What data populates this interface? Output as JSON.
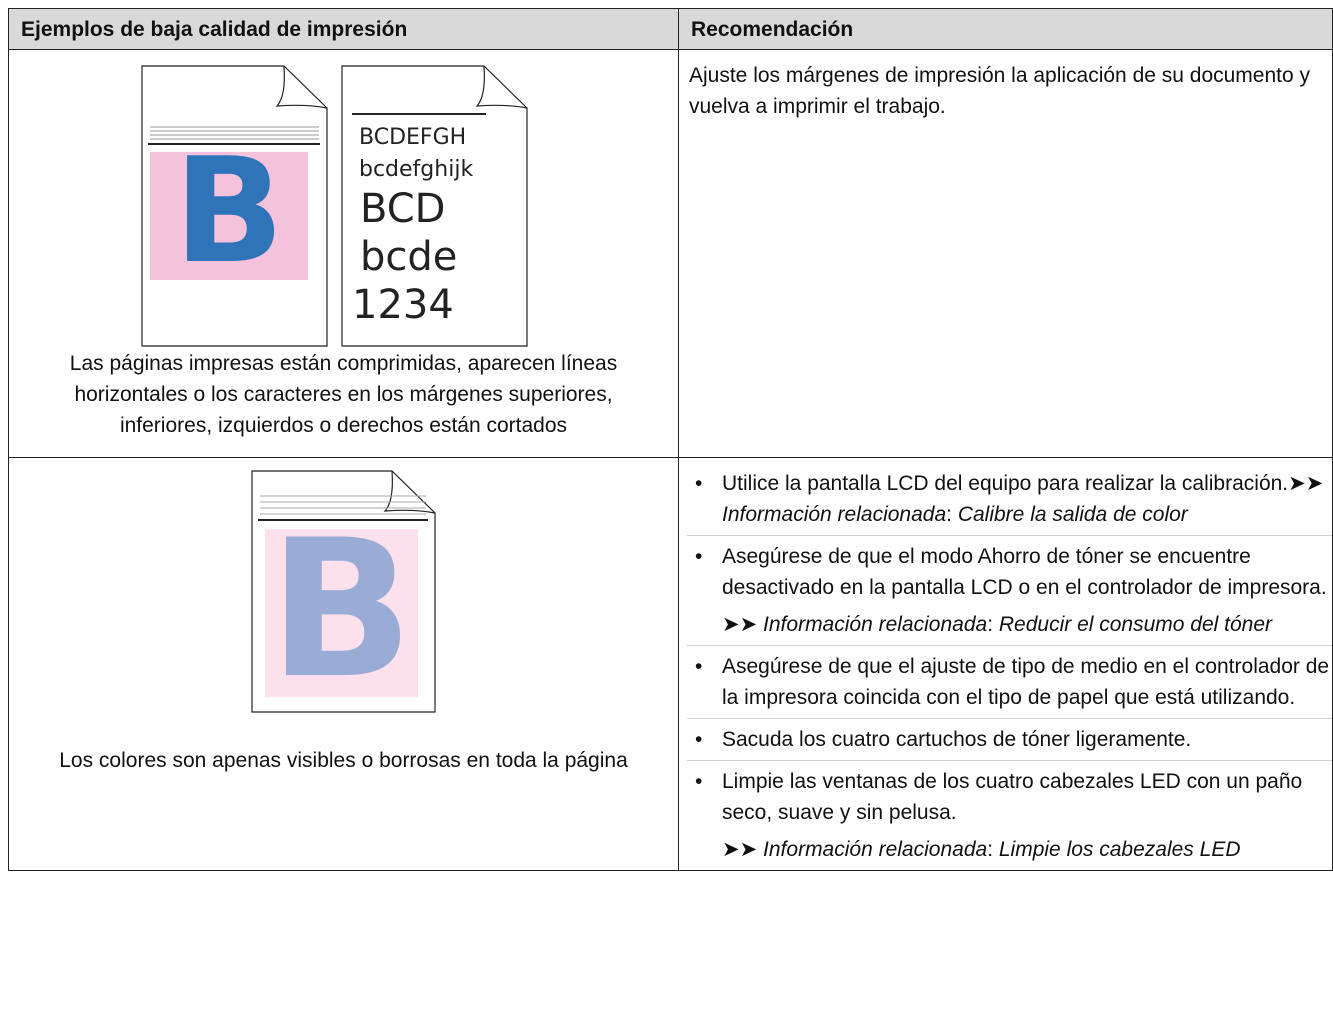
{
  "header": {
    "col1": "Ejemplos de baja calidad de impresión",
    "col2": "Recomendación"
  },
  "rows": [
    {
      "illustration": {
        "letter": "B",
        "sample_lines": [
          "BCDEFGH",
          "bcdefghijk",
          "BCD",
          "bcde",
          "1234"
        ]
      },
      "caption": "Las páginas impresas están comprimidas, aparecen líneas horizontales o los caracteres en los márgenes superiores, inferiores, izquierdos o derechos están cortados",
      "recommendation": "Ajuste los márgenes de impresión la aplicación de su documento y vuelva a imprimir el trabajo."
    },
    {
      "illustration": {
        "letter": "B"
      },
      "caption": "Los colores son apenas visibles o borrosas en toda la página",
      "items": [
        {
          "text": "Utilice la pantalla LCD del equipo para realizar la calibración.",
          "link": {
            "arrows": "➤➤",
            "label": "Información relacionada",
            "sep": ":",
            "target": "Calibre la salida de color"
          }
        },
        {
          "text": "Asegúrese de que el modo Ahorro de tóner se encuentre desactivado en la pantalla LCD o en el controlador de impresora.",
          "link": {
            "arrows": "➤➤",
            "label": "Información relacionada",
            "sep": ":",
            "target": "Reducir el consumo del tóner"
          }
        },
        {
          "text": "Asegúrese de que el ajuste de tipo de medio en el controlador de la impresora coincida con el tipo de papel que está utilizando."
        },
        {
          "text": "Sacuda los cuatro cartuchos de tóner ligeramente."
        },
        {
          "text": "Limpie las ventanas de los cuatro cabezales LED con un paño seco, suave y sin pelusa.",
          "link": {
            "arrows": "➤➤",
            "label": "Información relacionada",
            "sep": ":",
            "target": "Limpie los cabezales LED"
          }
        }
      ]
    }
  ]
}
